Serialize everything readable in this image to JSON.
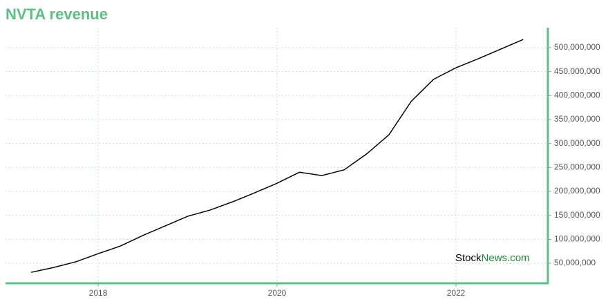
{
  "chart_data": {
    "type": "line",
    "title": "NVTA revenue",
    "x": [
      2017.25,
      2017.5,
      2017.75,
      2018,
      2018.25,
      2018.5,
      2018.75,
      2019,
      2019.25,
      2019.5,
      2019.75,
      2020,
      2020.25,
      2020.5,
      2020.75,
      2021,
      2021.25,
      2021.5,
      2021.75,
      2022,
      2022.25,
      2022.5,
      2022.75
    ],
    "series": [
      {
        "color": "#000000",
        "values": [
          31000000,
          41000000,
          53000000,
          70000000,
          86000000,
          108000000,
          128000000,
          148000000,
          161000000,
          178000000,
          197000000,
          217000000,
          240000000,
          233000000,
          245000000,
          278000000,
          318000000,
          388000000,
          434000000,
          458000000,
          477000000,
          497000000,
          517000000
        ]
      }
    ],
    "xlim": [
      2016.965,
      2023.027
    ],
    "xticks": [
      2018,
      2020,
      2022
    ],
    "ylim": [
      8200000,
      541800000
    ],
    "yticks": [
      {
        "value": 50000000,
        "label": "50,000,000"
      },
      {
        "value": 100000000,
        "label": "100,000,000"
      },
      {
        "value": 150000000,
        "label": "150,000,000"
      },
      {
        "value": 200000000,
        "label": "200,000,000"
      },
      {
        "value": 250000000,
        "label": "250,000,000"
      },
      {
        "value": 300000000,
        "label": "300,000,000"
      },
      {
        "value": 350000000,
        "label": "350,000,000"
      },
      {
        "value": 400000000,
        "label": "400,000,000"
      },
      {
        "value": 450000000,
        "label": "450,000,000"
      },
      {
        "value": 500000000,
        "label": "500,000,000"
      }
    ],
    "grid": true,
    "axis_color": "#5cbf85"
  },
  "watermark": {
    "brand": "Stock",
    "domain": "News.com"
  }
}
